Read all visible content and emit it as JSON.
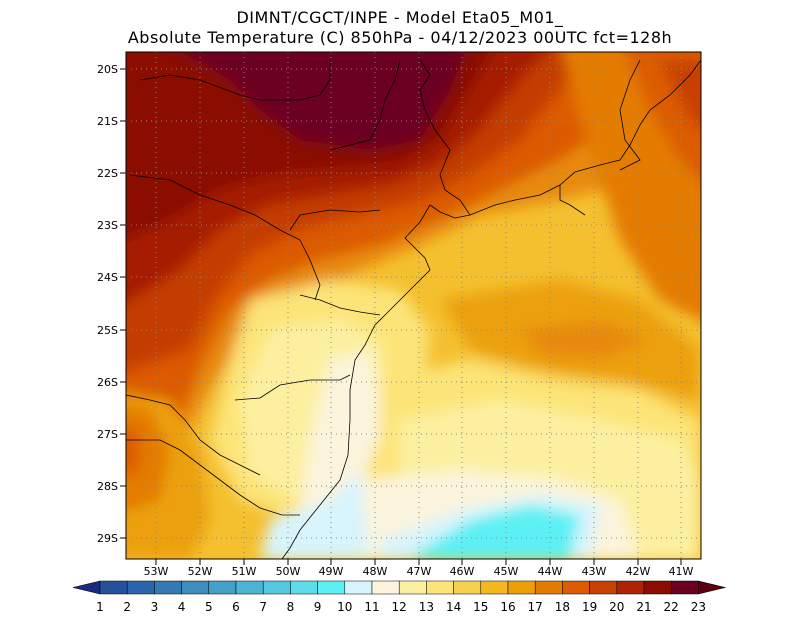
{
  "title_line1": "DIMNT/CGCT/INPE  -   Model Eta05_M01_",
  "title_line2": "Absolute Temperature (C) 850hPa  -   04/12/2023 00UTC fct=128h",
  "latitude_labels": [
    "20S",
    "21S",
    "22S",
    "23S",
    "24S",
    "25S",
    "26S",
    "27S",
    "28S",
    "29S"
  ],
  "longitude_labels": [
    "53W",
    "52W",
    "51W",
    "50W",
    "49W",
    "48W",
    "47W",
    "46W",
    "45W",
    "44W",
    "43W",
    "42W",
    "41W"
  ],
  "colorbar": {
    "levels": [
      "1",
      "2",
      "3",
      "4",
      "5",
      "6",
      "7",
      "8",
      "9",
      "10",
      "11",
      "12",
      "13",
      "14",
      "15",
      "16",
      "17",
      "18",
      "19",
      "20",
      "21",
      "22",
      "23"
    ],
    "colors": [
      "#1e3c8c",
      "#24509c",
      "#2c64ac",
      "#3478b4",
      "#3c8cbc",
      "#44a0c8",
      "#4cb4d4",
      "#54c8e0",
      "#5cdcec",
      "#5cf0f4",
      "#d8f4fc",
      "#fcf4dc",
      "#fcf0a0",
      "#fce478",
      "#f8d050",
      "#f4b820",
      "#eca008",
      "#e47c04",
      "#dc5c04",
      "#c84004",
      "#ac2404",
      "#8c0c04",
      "#6c0020"
    ],
    "low_color": "#1a2a80",
    "high_color": "#5a0010"
  }
}
